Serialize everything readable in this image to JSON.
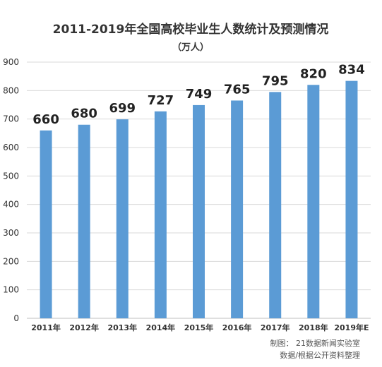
{
  "chart_data": {
    "type": "bar",
    "title": "2011-2019年全国高校毕业生人数统计及预测情况",
    "subtitle": "（万人）",
    "categories": [
      "2011年",
      "2012年",
      "2013年",
      "2014年",
      "2015年",
      "2016年",
      "2017年",
      "2018年",
      "2019年E"
    ],
    "values": [
      660,
      680,
      699,
      727,
      749,
      765,
      795,
      820,
      834
    ],
    "ylim": [
      0,
      900
    ],
    "yticks": [
      0,
      100,
      200,
      300,
      400,
      500,
      600,
      700,
      800,
      900
    ],
    "grid": true,
    "bar_color": "#5b9bd5"
  },
  "footer": {
    "credit": "制图： 21数据新闻实验室",
    "source": "数据/根据公开资料整理"
  }
}
